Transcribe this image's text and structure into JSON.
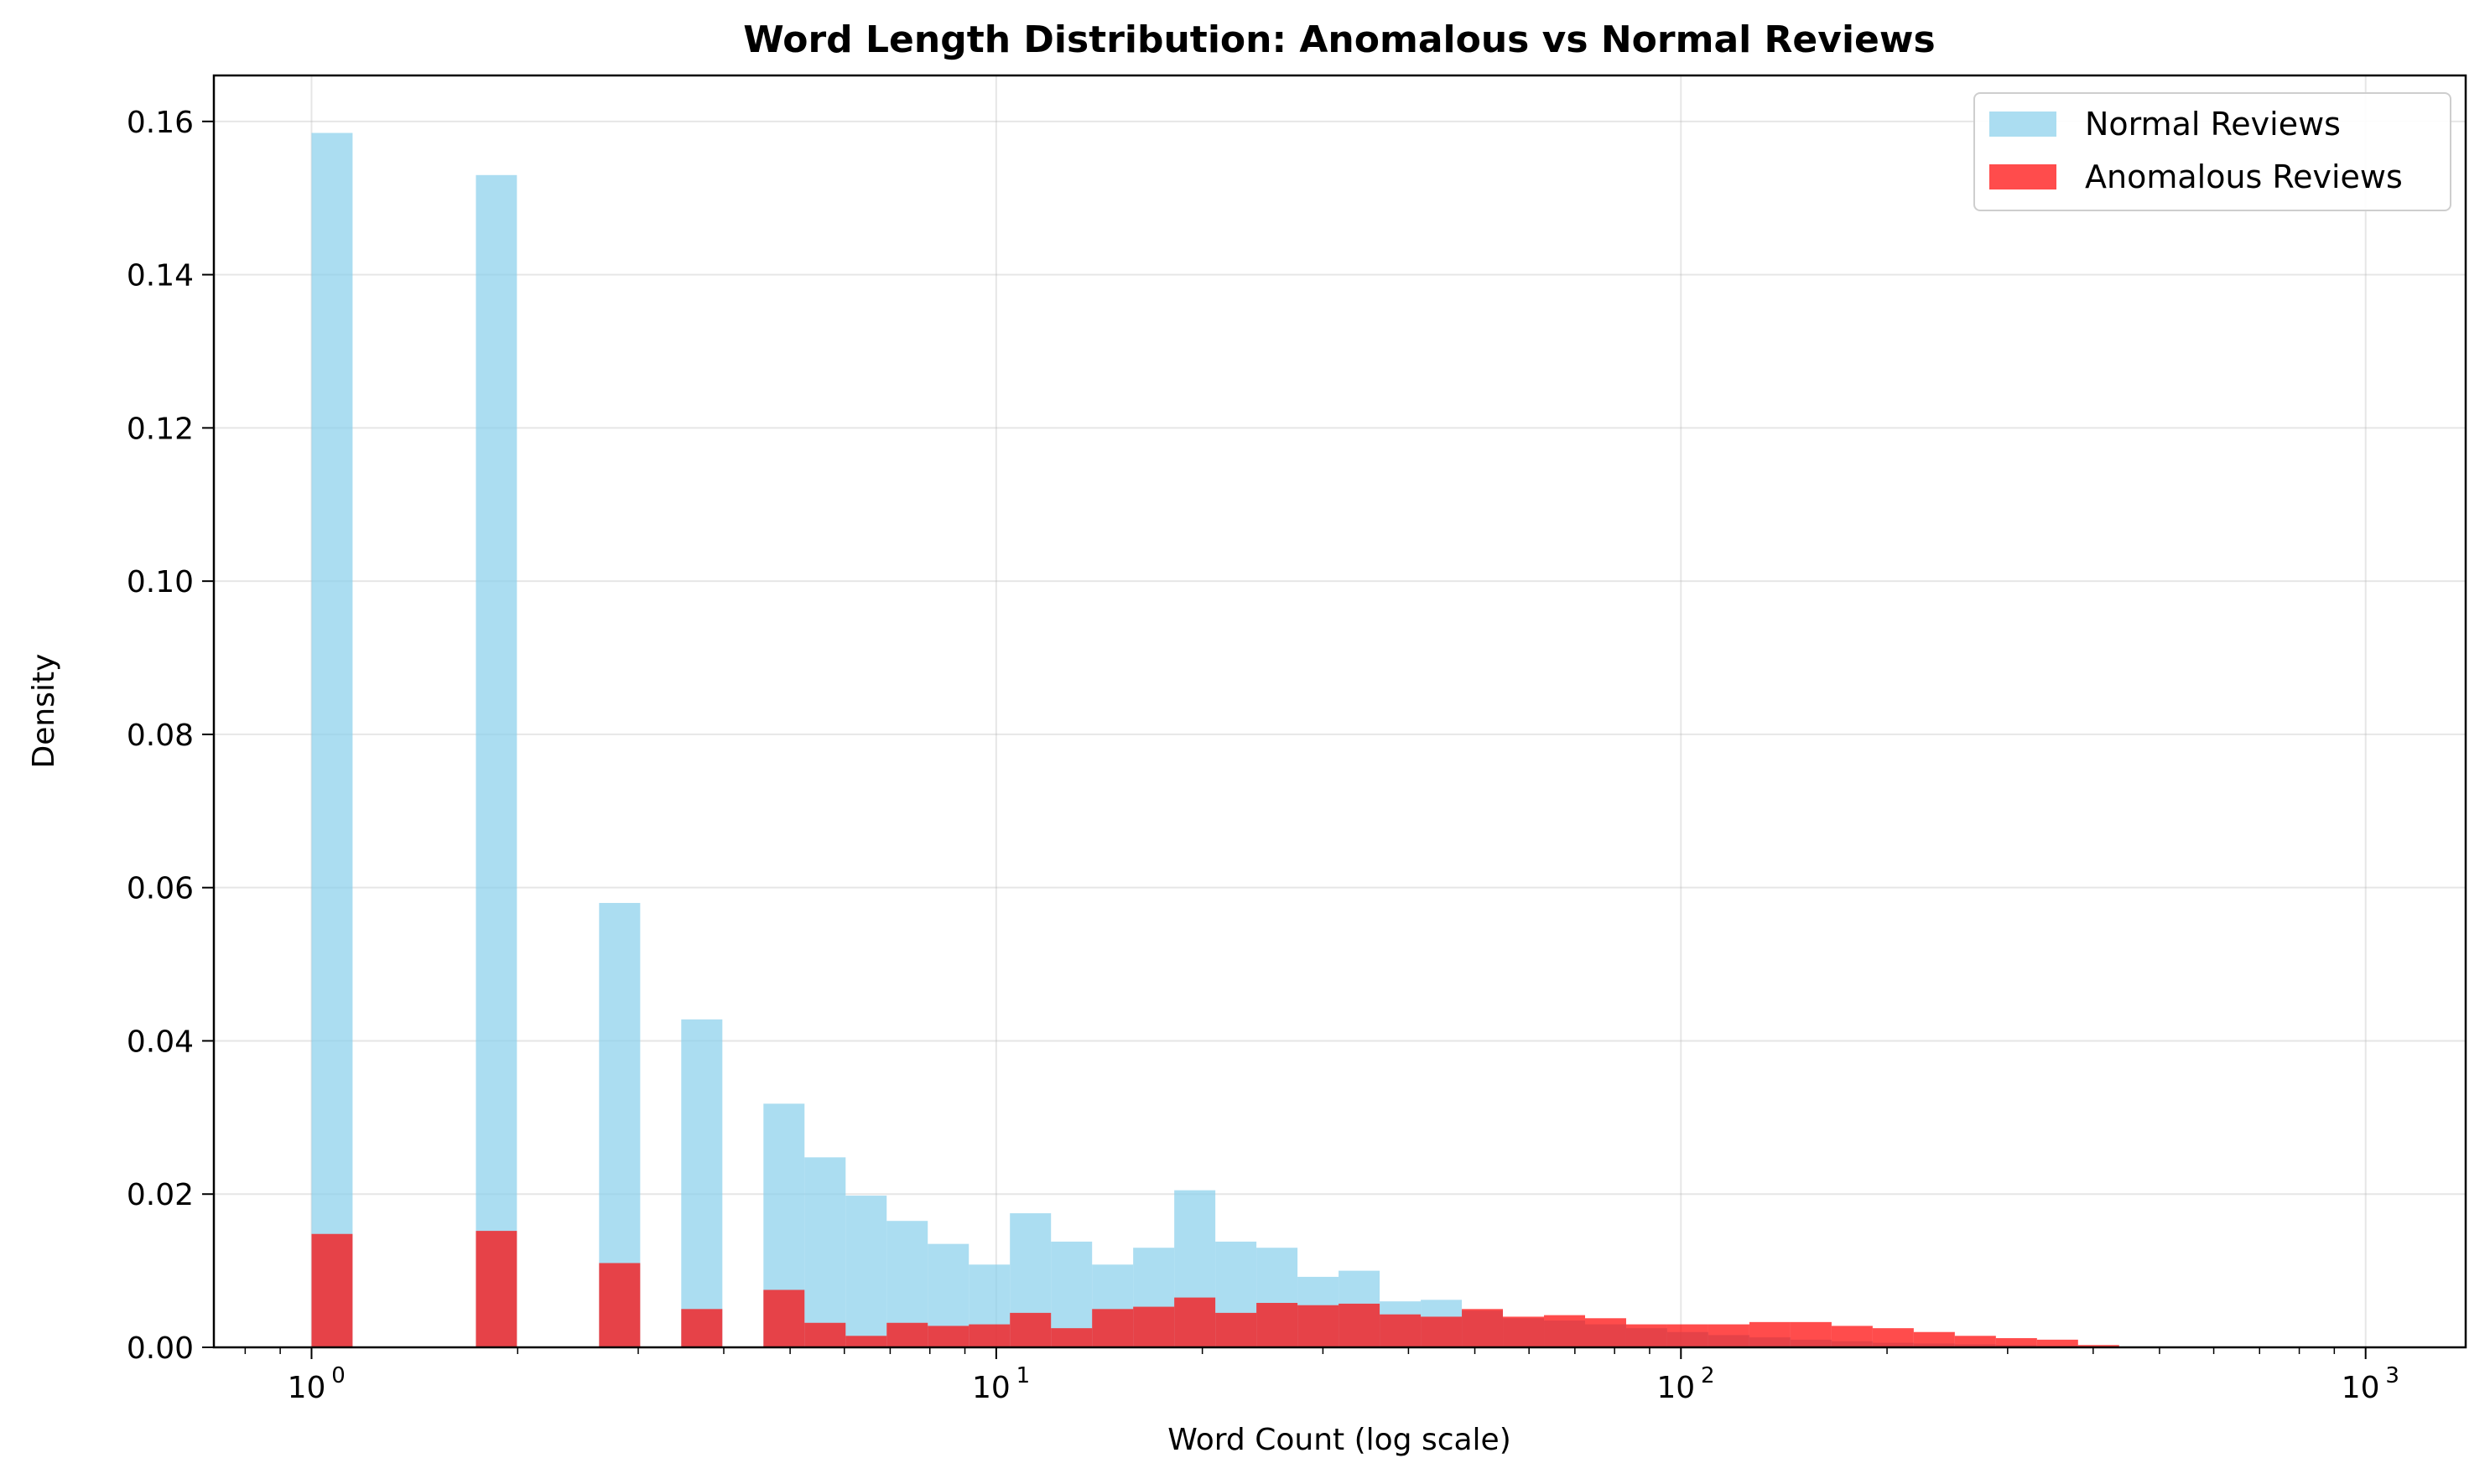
{
  "chart_data": {
    "type": "bar",
    "title": "Word Length Distribution: Anomalous vs Normal Reviews",
    "xlabel": "Word Count (log scale)",
    "ylabel": "Density",
    "xscale": "log",
    "xlim": [
      0.72,
      1400
    ],
    "ylim": [
      0,
      0.166
    ],
    "x_ticks": [
      {
        "value": 1,
        "base": "10",
        "exp": "0"
      },
      {
        "value": 10,
        "base": "10",
        "exp": "1"
      },
      {
        "value": 100,
        "base": "10",
        "exp": "2"
      },
      {
        "value": 1000,
        "base": "10",
        "exp": "3"
      }
    ],
    "y_ticks": [
      "0.00",
      "0.02",
      "0.04",
      "0.06",
      "0.08",
      "0.10",
      "0.12",
      "0.14",
      "0.16"
    ],
    "grid": true,
    "legend_position": "top-right",
    "bin_edges": [
      1.0,
      1.148,
      1.318,
      1.514,
      1.738,
      1.995,
      2.291,
      2.63,
      3.02,
      3.467,
      3.981,
      4.571,
      5.248,
      6.026,
      6.918,
      7.943,
      9.12,
      10.471,
      12.023,
      13.804,
      15.849,
      18.197,
      20.893,
      23.988,
      27.542,
      31.623,
      36.308,
      41.687,
      47.863,
      54.954,
      63.096,
      72.444,
      83.176,
      95.499,
      109.648,
      125.893,
      144.544,
      165.959,
      190.546,
      218.776,
      251.189,
      288.403,
      331.131,
      380.189,
      436.516,
      501.187,
      575.44,
      660.693,
      758.578,
      870.964,
      1000.0
    ],
    "series": [
      {
        "name": "Normal Reviews",
        "color": "#87ceeb",
        "opacity": 0.7,
        "values": [
          0.1585,
          0,
          0,
          0,
          0.153,
          0,
          0,
          0.058,
          0,
          0.0428,
          0,
          0.0318,
          0.0248,
          0.0198,
          0.0165,
          0.0135,
          0.0108,
          0.0175,
          0.0138,
          0.0108,
          0.013,
          0.0205,
          0.0138,
          0.013,
          0.0092,
          0.01,
          0.006,
          0.0062,
          0.0048,
          0.0038,
          0.0035,
          0.003,
          0.0025,
          0.002,
          0.0016,
          0.0013,
          0.001,
          0.0008,
          0.0006,
          0.0005,
          0.0004,
          0.0003,
          0.0002,
          0.0001,
          0.0001,
          0,
          0,
          0,
          0,
          0
        ]
      },
      {
        "name": "Anomalous Reviews",
        "color": "#ff0000",
        "opacity": 0.7,
        "values": [
          0.0148,
          0,
          0,
          0,
          0.0152,
          0,
          0,
          0.011,
          0,
          0.005,
          0,
          0.0075,
          0.0032,
          0.0015,
          0.0032,
          0.0028,
          0.003,
          0.0045,
          0.0025,
          0.005,
          0.0053,
          0.0065,
          0.0045,
          0.0058,
          0.0055,
          0.0057,
          0.0043,
          0.004,
          0.005,
          0.004,
          0.0042,
          0.0038,
          0.003,
          0.003,
          0.003,
          0.0033,
          0.0033,
          0.0028,
          0.0025,
          0.002,
          0.0015,
          0.0012,
          0.001,
          0.0003,
          0.0001,
          0,
          0,
          0,
          0,
          0
        ]
      }
    ]
  }
}
